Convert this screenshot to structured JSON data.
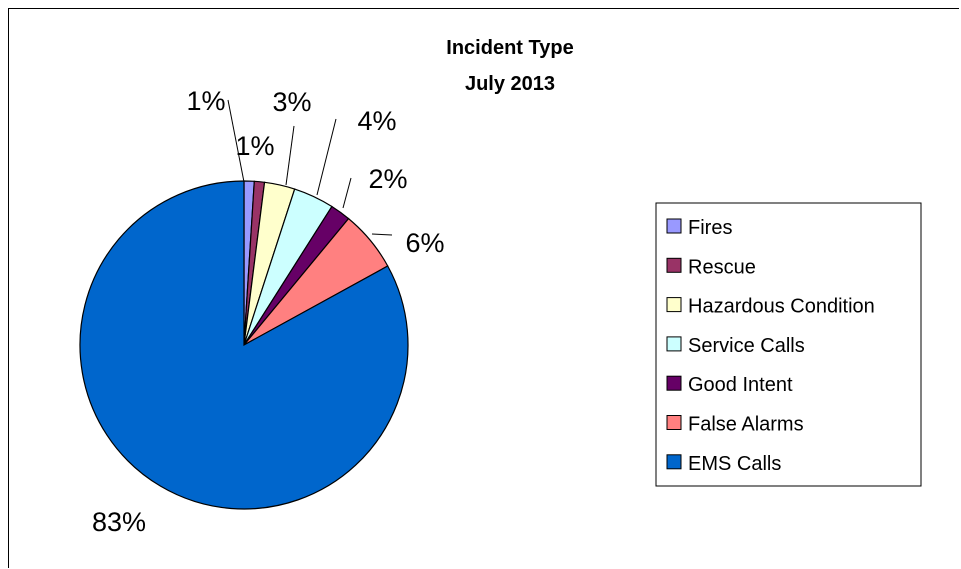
{
  "chart_data": {
    "type": "pie",
    "title": [
      "Incident Type",
      "July  2013"
    ],
    "legend_position": "right",
    "slices": [
      {
        "name": "Fires",
        "value": 1,
        "label": "1%",
        "color": "#9999ff"
      },
      {
        "name": "Rescue",
        "value": 1,
        "label": "1%",
        "color": "#993366"
      },
      {
        "name": "Hazardous Condition",
        "value": 3,
        "label": "3%",
        "color": "#ffffcc"
      },
      {
        "name": "Service Calls",
        "value": 4,
        "label": "4%",
        "color": "#ccffff"
      },
      {
        "name": "Good Intent",
        "value": 2,
        "label": "2%",
        "color": "#660066"
      },
      {
        "name": "False Alarms",
        "value": 6,
        "label": "6%",
        "color": "#ff8080"
      },
      {
        "name": "EMS Calls",
        "value": 83,
        "label": "83%",
        "color": "#0066cc"
      }
    ]
  }
}
